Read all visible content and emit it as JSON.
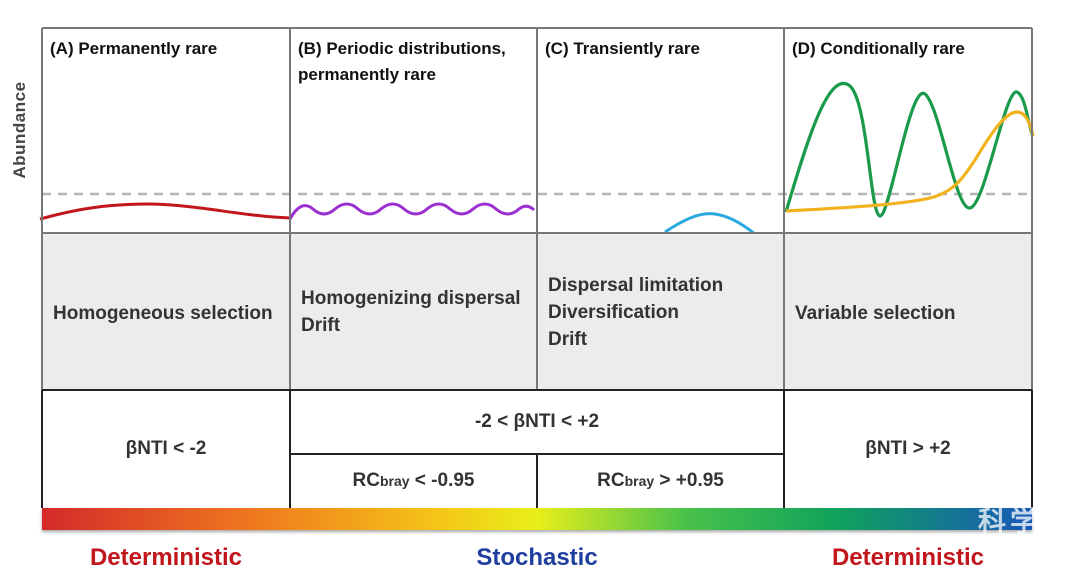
{
  "y_axis_label": "Abundance",
  "panels": [
    {
      "title": "(A) Permanently rare"
    },
    {
      "title": "(B) Periodic distributions, permanently rare"
    },
    {
      "title": "(C) Transiently rare"
    },
    {
      "title": "(D) Conditionally rare"
    }
  ],
  "mechanisms": [
    {
      "lines": [
        "Homogeneous selection"
      ]
    },
    {
      "lines": [
        "Homogenizing dispersal",
        "Drift"
      ]
    },
    {
      "lines": [
        "Dispersal limitation",
        "Diversification",
        "Drift"
      ]
    },
    {
      "lines": [
        "Variable selection"
      ]
    }
  ],
  "nti": {
    "left": "βNTI < -2",
    "middle": "-2 < βNTI < +2",
    "right": "βNTI > +2",
    "rc_left": {
      "base": "RC",
      "sub": "bray",
      "rest": " < -0.95"
    },
    "rc_right": {
      "base": "RC",
      "sub": "bray",
      "rest": " > +0.95"
    }
  },
  "gradient_labels": [
    {
      "text": "Deterministic",
      "color": "#c0161c"
    },
    {
      "text": "Stochastic",
      "color": "#1f3e9e"
    },
    {
      "text": "Deterministic",
      "color": "#c0161c"
    }
  ],
  "watermark": "科学",
  "colors": {
    "curve_a": "#c0161c",
    "curve_b": "#9b2fd0",
    "curve_c": "#2aa9e0",
    "curve_d1": "#1a9a4a",
    "curve_d2": "#f2b21d",
    "threshold": "#b5b5b5",
    "grid": "#777777"
  }
}
